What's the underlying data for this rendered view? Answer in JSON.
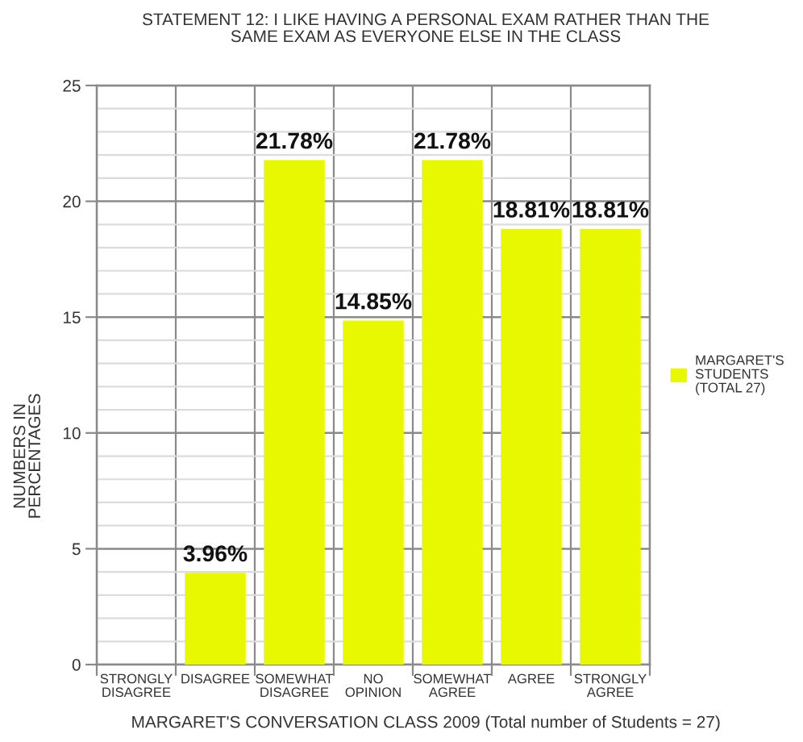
{
  "chart_data": {
    "type": "bar",
    "title": "STATEMENT 12: I LIKE HAVING A PERSONAL EXAM RATHER THAN THE\nSAME EXAM AS EVERYONE ELSE IN THE CLASS",
    "xlabel": "MARGARET'S CONVERSATION CLASS 2009 (Total number of Students = 27)",
    "ylabel": "NUMBERS IN\nPERCENTAGES",
    "categories": [
      "STRONGLY\nDISAGREE",
      "DISAGREE",
      "SOMEWHAT\nDISAGREE",
      "NO\nOPINION",
      "SOMEWHAT\nAGREE",
      "AGREE",
      "STRONGLY\nAGREE"
    ],
    "series": [
      {
        "name": "MARGARET'S\nSTUDENTS\n(TOTAL 27)",
        "color": "#e8f800",
        "values": [
          0,
          3.96,
          21.78,
          14.85,
          21.78,
          18.81,
          18.81
        ],
        "value_labels": [
          null,
          "3.96%",
          "21.78%",
          "14.85%",
          "21.78%",
          "18.81%",
          "18.81%"
        ]
      }
    ],
    "ylim": [
      0,
      25
    ],
    "yticks": [
      0,
      {
        "value": 1,
        "label": null
      },
      {
        "value": 2,
        "label": null
      },
      {
        "value": 3,
        "label": null
      },
      {
        "value": 4,
        "label": null
      },
      5,
      {
        "value": 6,
        "label": null
      },
      {
        "value": 7,
        "label": null
      },
      {
        "value": 8,
        "label": null
      },
      {
        "value": 9,
        "label": null
      },
      10,
      {
        "value": 11,
        "label": null
      },
      {
        "value": 12,
        "label": null
      },
      {
        "value": 13,
        "label": null
      },
      {
        "value": 14,
        "label": null
      },
      15,
      {
        "value": 16,
        "label": null
      },
      {
        "value": 17,
        "label": null
      },
      {
        "value": 18,
        "label": null
      },
      {
        "value": 19,
        "label": null
      },
      20,
      {
        "value": 21,
        "label": null
      },
      {
        "value": 22,
        "label": null
      },
      {
        "value": 23,
        "label": null
      },
      {
        "value": 24,
        "label": null
      },
      25
    ],
    "grid": true,
    "legend": "right"
  }
}
